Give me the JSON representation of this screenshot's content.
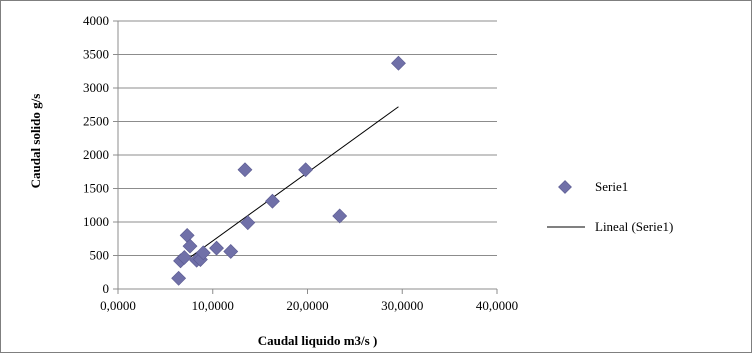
{
  "chart_data": {
    "type": "scatter",
    "xlabel": "Caudal liquido m3/s )",
    "ylabel": "Caudal solido g/s",
    "xlim": [
      0,
      40
    ],
    "ylim": [
      0,
      4000
    ],
    "x_ticks": [
      "0,0000",
      "10,0000",
      "20,0000",
      "30,0000",
      "40,0000"
    ],
    "y_ticks": [
      "0",
      "500",
      "1000",
      "1500",
      "2000",
      "2500",
      "3000",
      "3500",
      "4000"
    ],
    "grid": "horizontal",
    "legend_position": "right",
    "series": [
      {
        "name": "Serie1",
        "marker": "diamond",
        "color": "#7070a8",
        "points": [
          [
            6.4,
            160
          ],
          [
            6.6,
            420
          ],
          [
            7.0,
            470
          ],
          [
            7.3,
            800
          ],
          [
            7.6,
            640
          ],
          [
            8.3,
            430
          ],
          [
            8.7,
            440
          ],
          [
            9.0,
            540
          ],
          [
            10.4,
            610
          ],
          [
            11.9,
            560
          ],
          [
            13.4,
            1780
          ],
          [
            13.7,
            990
          ],
          [
            16.3,
            1310
          ],
          [
            19.8,
            1780
          ],
          [
            23.4,
            1090
          ],
          [
            29.6,
            3370
          ]
        ]
      }
    ],
    "trendline": {
      "name": "Lineal (Serie1)",
      "color": "#000000",
      "x_start": 6.4,
      "y_start": 350,
      "x_end": 29.6,
      "y_end": 2720
    }
  }
}
